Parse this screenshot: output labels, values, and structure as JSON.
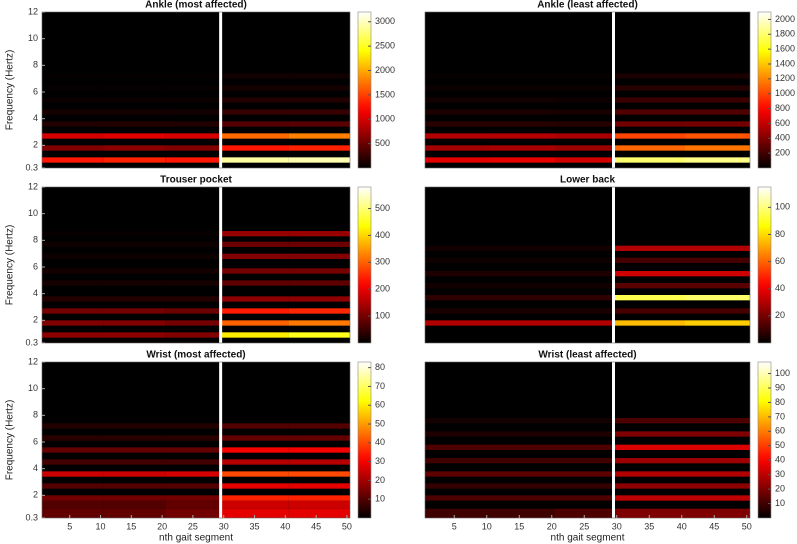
{
  "chart_data": [
    {
      "type": "heatmap",
      "title": "Ankle (most affected)",
      "ylabel": "Frequency (Hertz)",
      "colormap": "hot",
      "xlim": [
        0.5,
        50.5
      ],
      "ylim": [
        0.3,
        12
      ],
      "yticks": [
        0.3,
        2,
        4,
        6,
        8,
        10,
        12
      ],
      "x_edges": [
        0.5,
        10.5,
        20.5,
        29.5,
        40.5,
        50.5
      ],
      "clim": [
        0,
        3200
      ],
      "cticks": [
        500,
        1000,
        1500,
        2000,
        2500,
        3000
      ],
      "bands": [
        {
          "y0": 0.7,
          "y1": 1.1,
          "values": [
            1300,
            1350,
            1300,
            2900,
            2950
          ]
        },
        {
          "y0": 1.6,
          "y1": 2.0,
          "values": [
            600,
            650,
            600,
            1300,
            1350
          ]
        },
        {
          "y0": 2.5,
          "y1": 2.9,
          "values": [
            1000,
            1050,
            1000,
            1700,
            1800
          ]
        },
        {
          "y0": 3.4,
          "y1": 3.8,
          "values": [
            150,
            160,
            150,
            400,
            420
          ]
        },
        {
          "y0": 4.3,
          "y1": 4.7,
          "values": [
            100,
            100,
            90,
            250,
            260
          ]
        },
        {
          "y0": 5.2,
          "y1": 5.6,
          "values": [
            50,
            50,
            50,
            150,
            150
          ]
        },
        {
          "y0": 6.1,
          "y1": 6.5,
          "values": [
            30,
            30,
            30,
            100,
            100
          ]
        },
        {
          "y0": 7.0,
          "y1": 7.4,
          "values": [
            20,
            20,
            20,
            80,
            80
          ]
        }
      ]
    },
    {
      "type": "heatmap",
      "title": "Ankle (least affected)",
      "colormap": "hot",
      "xlim": [
        0.5,
        50.5
      ],
      "ylim": [
        0.3,
        12
      ],
      "x_edges": [
        0.5,
        10.5,
        20.5,
        29.5,
        40.5,
        50.5
      ],
      "clim": [
        0,
        2100
      ],
      "cticks": [
        200,
        400,
        600,
        800,
        1000,
        1200,
        1400,
        1600,
        1800,
        2000
      ],
      "bands": [
        {
          "y0": 0.7,
          "y1": 1.1,
          "values": [
            700,
            720,
            650,
            1800,
            1850
          ]
        },
        {
          "y0": 1.6,
          "y1": 2.0,
          "values": [
            500,
            520,
            480,
            1100,
            1150
          ]
        },
        {
          "y0": 2.5,
          "y1": 2.9,
          "values": [
            550,
            560,
            520,
            1000,
            1050
          ]
        },
        {
          "y0": 3.4,
          "y1": 3.8,
          "values": [
            120,
            120,
            110,
            350,
            360
          ]
        },
        {
          "y0": 4.3,
          "y1": 4.7,
          "values": [
            80,
            80,
            70,
            250,
            250
          ]
        },
        {
          "y0": 5.2,
          "y1": 5.6,
          "values": [
            50,
            50,
            40,
            180,
            180
          ]
        },
        {
          "y0": 6.1,
          "y1": 6.5,
          "values": [
            30,
            30,
            30,
            120,
            120
          ]
        },
        {
          "y0": 7.0,
          "y1": 7.4,
          "values": [
            20,
            20,
            20,
            80,
            80
          ]
        }
      ]
    },
    {
      "type": "heatmap",
      "title": "Trouser pocket",
      "ylabel": "Frequency (Hertz)",
      "colormap": "hot",
      "xlim": [
        0.5,
        50.5
      ],
      "ylim": [
        0.3,
        12
      ],
      "yticks": [
        0.3,
        2,
        4,
        6,
        8,
        10,
        12
      ],
      "x_edges": [
        0.5,
        10.5,
        20.5,
        29.5,
        40.5,
        50.5
      ],
      "clim": [
        0,
        580
      ],
      "cticks": [
        100,
        200,
        300,
        400,
        500
      ],
      "bands": [
        {
          "y0": 0.7,
          "y1": 1.1,
          "values": [
            120,
            120,
            110,
            420,
            450
          ]
        },
        {
          "y0": 1.6,
          "y1": 2.0,
          "values": [
            110,
            110,
            100,
            300,
            320
          ]
        },
        {
          "y0": 2.5,
          "y1": 2.9,
          "values": [
            100,
            100,
            90,
            240,
            250
          ]
        },
        {
          "y0": 3.4,
          "y1": 3.8,
          "values": [
            30,
            30,
            30,
            120,
            120
          ]
        },
        {
          "y0": 4.6,
          "y1": 5.0,
          "values": [
            20,
            20,
            20,
            80,
            80
          ]
        },
        {
          "y0": 5.5,
          "y1": 5.9,
          "values": [
            15,
            15,
            15,
            100,
            100
          ]
        },
        {
          "y0": 6.6,
          "y1": 7.0,
          "values": [
            10,
            10,
            10,
            110,
            110
          ]
        },
        {
          "y0": 7.5,
          "y1": 7.9,
          "values": [
            10,
            10,
            10,
            90,
            90
          ]
        },
        {
          "y0": 8.3,
          "y1": 8.7,
          "values": [
            5,
            5,
            5,
            130,
            130
          ]
        }
      ]
    },
    {
      "type": "heatmap",
      "title": "Lower back",
      "colormap": "hot",
      "xlim": [
        0.5,
        50.5
      ],
      "ylim": [
        0.3,
        12
      ],
      "x_edges": [
        0.5,
        10.5,
        20.5,
        29.5,
        40.5,
        50.5
      ],
      "clim": [
        0,
        115
      ],
      "cticks": [
        20,
        40,
        60,
        80,
        100
      ],
      "bands": [
        {
          "y0": 1.6,
          "y1": 2.0,
          "values": [
            30,
            30,
            30,
            75,
            78
          ]
        },
        {
          "y0": 2.5,
          "y1": 2.9,
          "values": [
            4,
            4,
            4,
            12,
            12
          ]
        },
        {
          "y0": 3.5,
          "y1": 3.9,
          "values": [
            8,
            8,
            8,
            95,
            98
          ]
        },
        {
          "y0": 4.4,
          "y1": 4.8,
          "values": [
            3,
            3,
            3,
            15,
            15
          ]
        },
        {
          "y0": 5.3,
          "y1": 5.7,
          "values": [
            5,
            5,
            5,
            35,
            35
          ]
        },
        {
          "y0": 6.3,
          "y1": 6.7,
          "values": [
            2,
            2,
            2,
            12,
            12
          ]
        },
        {
          "y0": 7.2,
          "y1": 7.6,
          "values": [
            3,
            3,
            3,
            30,
            30
          ]
        }
      ]
    },
    {
      "type": "heatmap",
      "title": "Wrist (most affected)",
      "ylabel": "Frequency (Hertz)",
      "xlabel": "nth gait segment",
      "colormap": "hot",
      "xlim": [
        0.5,
        50.5
      ],
      "ylim": [
        0.3,
        12
      ],
      "yticks": [
        0.3,
        2,
        4,
        6,
        8,
        10,
        12
      ],
      "xticks": [
        5,
        10,
        15,
        20,
        25,
        30,
        35,
        40,
        45,
        50
      ],
      "x_edges": [
        0.5,
        10.5,
        20.5,
        29.5,
        40.5,
        50.5
      ],
      "clim": [
        0,
        83
      ],
      "cticks": [
        10,
        20,
        30,
        40,
        50,
        60,
        70,
        80
      ],
      "bands": [
        {
          "y0": 0.3,
          "y1": 1.0,
          "values": [
            12,
            12,
            14,
            28,
            28
          ]
        },
        {
          "y0": 1.0,
          "y1": 1.6,
          "values": [
            10,
            10,
            12,
            25,
            25
          ]
        },
        {
          "y0": 1.6,
          "y1": 2.0,
          "values": [
            14,
            14,
            14,
            35,
            35
          ]
        },
        {
          "y0": 2.5,
          "y1": 2.9,
          "values": [
            10,
            10,
            10,
            28,
            28
          ]
        },
        {
          "y0": 3.4,
          "y1": 3.8,
          "values": [
            25,
            25,
            26,
            40,
            40
          ]
        },
        {
          "y0": 4.3,
          "y1": 4.7,
          "values": [
            8,
            8,
            8,
            22,
            22
          ]
        },
        {
          "y0": 5.2,
          "y1": 5.6,
          "values": [
            12,
            12,
            12,
            30,
            30
          ]
        },
        {
          "y0": 6.1,
          "y1": 6.5,
          "values": [
            5,
            5,
            5,
            12,
            12
          ]
        },
        {
          "y0": 7.0,
          "y1": 7.4,
          "values": [
            4,
            4,
            4,
            10,
            10
          ]
        }
      ]
    },
    {
      "type": "heatmap",
      "title": "Wrist (least affected)",
      "xlabel": "nth gait segment",
      "colormap": "hot",
      "xlim": [
        0.5,
        50.5
      ],
      "ylim": [
        0.3,
        12
      ],
      "xticks": [
        5,
        10,
        15,
        20,
        25,
        30,
        35,
        40,
        45,
        50
      ],
      "x_edges": [
        0.5,
        10.5,
        20.5,
        29.5,
        40.5,
        50.5
      ],
      "clim": [
        0,
        108
      ],
      "cticks": [
        10,
        20,
        30,
        40,
        50,
        60,
        70,
        80,
        90,
        100
      ],
      "bands": [
        {
          "y0": 0.3,
          "y1": 1.0,
          "values": [
            10,
            10,
            12,
            20,
            20
          ]
        },
        {
          "y0": 1.6,
          "y1": 2.0,
          "values": [
            12,
            12,
            12,
            30,
            30
          ]
        },
        {
          "y0": 2.5,
          "y1": 2.9,
          "values": [
            8,
            8,
            8,
            22,
            22
          ]
        },
        {
          "y0": 3.4,
          "y1": 3.8,
          "values": [
            15,
            15,
            15,
            28,
            28
          ]
        },
        {
          "y0": 4.4,
          "y1": 4.8,
          "values": [
            10,
            10,
            10,
            25,
            25
          ]
        },
        {
          "y0": 5.4,
          "y1": 5.8,
          "values": [
            12,
            12,
            12,
            35,
            35
          ]
        },
        {
          "y0": 6.4,
          "y1": 6.8,
          "values": [
            5,
            5,
            5,
            20,
            20
          ]
        },
        {
          "y0": 7.4,
          "y1": 7.8,
          "values": [
            3,
            3,
            3,
            12,
            12
          ]
        }
      ]
    }
  ]
}
